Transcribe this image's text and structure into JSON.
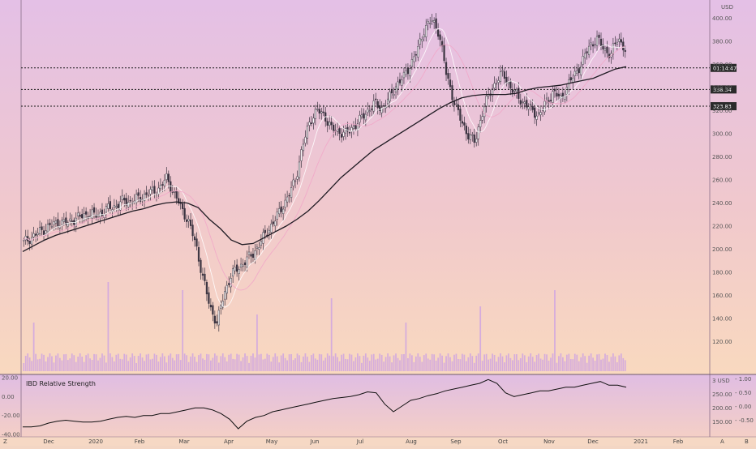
{
  "chart_data": [
    {
      "type": "candlestick",
      "currency": "USD",
      "ylim": [
        100,
        420
      ],
      "y_ticks": [
        120,
        140,
        160,
        180,
        200,
        220,
        240,
        260,
        280,
        300,
        320,
        340,
        360,
        380,
        400,
        420
      ],
      "y_tick_labels": [
        "120.00",
        "140.00",
        "160.00",
        "180.00",
        "200.00",
        "220.00",
        "240.00",
        "260.00",
        "280.00",
        "300.00",
        "320.00",
        "340.00",
        "360.00",
        "380.00",
        "400.00",
        "420.00"
      ],
      "x_labels": [
        "Dec",
        "2020",
        "Feb",
        "Mar",
        "Apr",
        "May",
        "Jun",
        "Jul",
        "Aug",
        "Sep",
        "Oct",
        "Nov",
        "Dec",
        "2021",
        "Feb"
      ],
      "close_series": [
        206,
        210,
        214,
        218,
        221,
        224,
        222,
        226,
        228,
        231,
        229,
        232,
        236,
        238,
        242,
        241,
        244,
        247,
        250,
        253,
        262,
        248,
        236,
        224,
        205,
        176,
        150,
        136,
        162,
        178,
        184,
        190,
        196,
        205,
        216,
        224,
        236,
        246,
        262,
        290,
        312,
        320,
        316,
        304,
        302,
        300,
        306,
        312,
        320,
        326,
        322,
        330,
        342,
        348,
        360,
        372,
        392,
        398,
        388,
        352,
        330,
        312,
        300,
        292,
        318,
        334,
        346,
        352,
        340,
        332,
        326,
        320,
        316,
        328,
        336,
        330,
        342,
        352,
        362,
        376,
        382,
        374,
        368,
        384,
        372
      ],
      "ma_long": [
        198,
        203,
        208,
        212,
        215,
        218,
        221,
        224,
        227,
        230,
        233,
        235,
        238,
        240,
        241,
        240,
        236,
        226,
        218,
        208,
        204,
        205,
        210,
        215,
        220,
        226,
        233,
        242,
        252,
        262,
        270,
        278,
        286,
        292,
        298,
        304,
        310,
        316,
        322,
        327,
        331,
        333,
        334,
        334,
        334,
        335,
        338,
        340,
        341,
        342,
        344,
        346,
        348,
        352,
        356,
        358
      ],
      "horizontal_lines": [
        {
          "label": "01:14:47",
          "value": 357
        },
        {
          "label": "338.34",
          "value": 338.34
        },
        {
          "label": "323.83",
          "value": 323.83
        }
      ]
    },
    {
      "type": "line",
      "title": "IBD Relative Strength",
      "left_ylim": [
        -40,
        20
      ],
      "left_ticks": [
        "20.00",
        "0.00",
        "-20.00",
        "-40.00"
      ],
      "right_ticks": [
        "1.00",
        "0.50",
        "0.00",
        "-0.50"
      ],
      "right_ticks_usd": [
        "3 USD",
        "250.00",
        "200.00",
        "150.00"
      ],
      "values": [
        -32,
        -32,
        -31,
        -28,
        -26,
        -25,
        -26,
        -27,
        -27,
        -26,
        -24,
        -22,
        -21,
        -22,
        -20,
        -20,
        -18,
        -18,
        -16,
        -14,
        -12,
        -12,
        -14,
        -18,
        -24,
        -34,
        -26,
        -22,
        -20,
        -16,
        -14,
        -12,
        -10,
        -8,
        -6,
        -4,
        -2,
        -1,
        0,
        2,
        5,
        4,
        -8,
        -16,
        -10,
        -4,
        -2,
        1,
        3,
        6,
        8,
        10,
        12,
        14,
        18,
        14,
        4,
        0,
        2,
        4,
        6,
        6,
        8,
        10,
        10,
        12,
        14,
        16,
        12,
        12,
        10
      ],
      "bottom_labels": [
        "Z",
        "A",
        "B"
      ]
    }
  ]
}
